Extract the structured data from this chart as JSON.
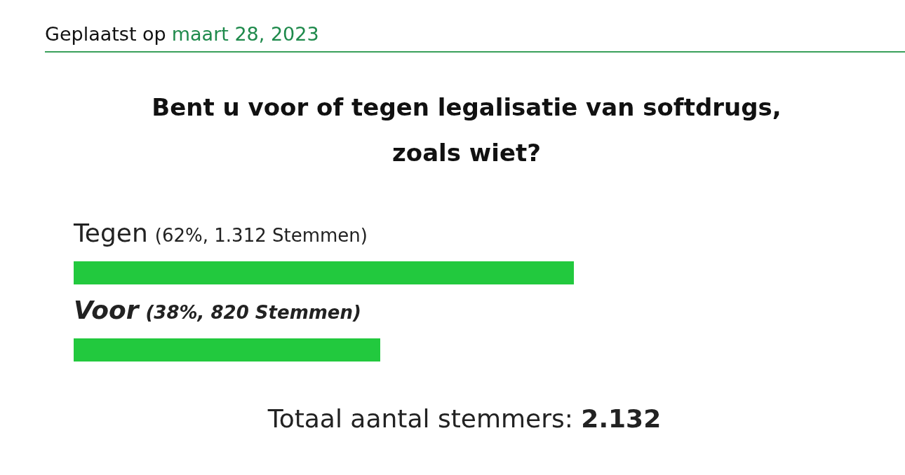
{
  "chart_data": {
    "type": "bar",
    "orientation": "horizontal",
    "title": "Bent u voor of tegen legalisatie van softdrugs, zoals wiet?",
    "categories": [
      "Tegen",
      "Voor"
    ],
    "values": [
      62,
      38
    ],
    "value_labels": [
      "(62%, 1.312 Stemmen)",
      "(38%, 820 Stemmen)"
    ],
    "color": "#22c93e",
    "annotations": [
      "Geplaatst op",
      "maart 28, 2023",
      "Totaal aantal stemmers: 2.132"
    ]
  }
}
